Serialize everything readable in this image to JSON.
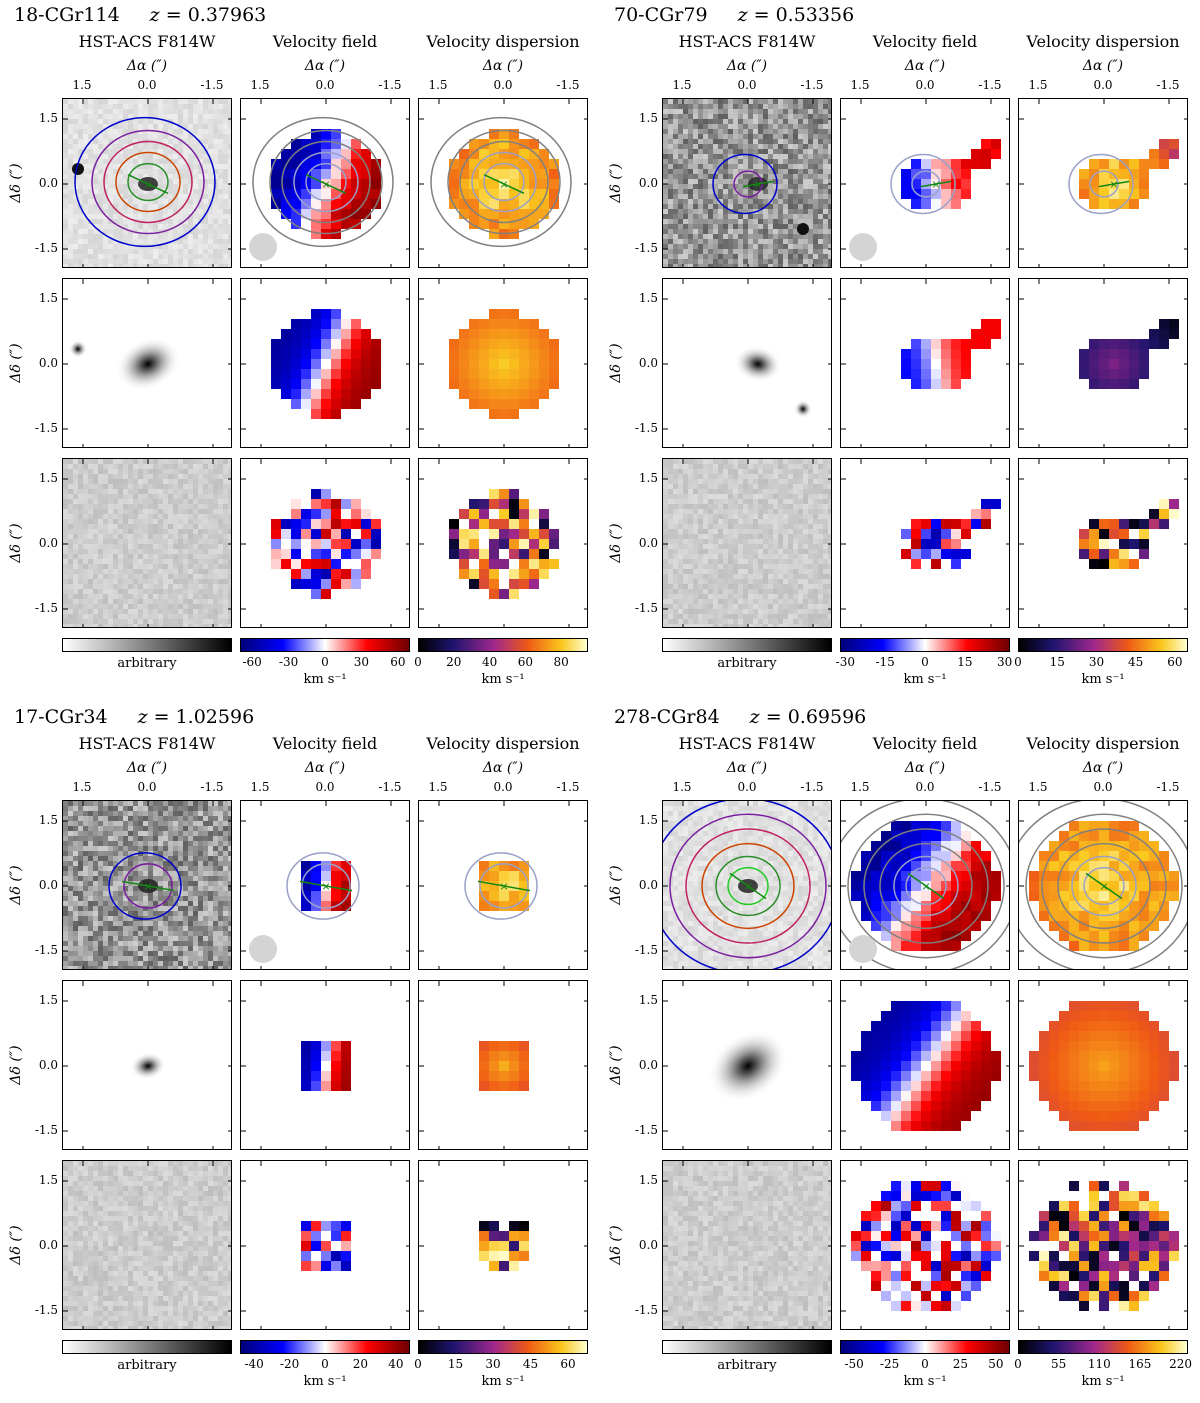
{
  "figure": {
    "axis": {
      "x_label": "Δα (″)",
      "y_label": "Δδ (″)"
    },
    "column_titles": [
      "HST-ACS F814W",
      "Velocity field",
      "Velocity dispersion"
    ],
    "galaxies": [
      {
        "name": "18-CGr114",
        "z_label": "z = ",
        "z": "0.37963",
        "x_ticks": [
          "1.5",
          "0.0",
          "-1.5"
        ],
        "y_ticks": [
          "1.5",
          "0.0",
          "-1.5"
        ],
        "colorbars": [
          {
            "label": "arbitrary",
            "ticks": []
          },
          {
            "label": "km s⁻¹",
            "ticks": [
              "-60",
              "-30",
              "0",
              "30",
              "60"
            ],
            "range": [
              -70,
              70
            ]
          },
          {
            "label": "km s⁻¹",
            "ticks": [
              "0",
              "20",
              "40",
              "60",
              "80"
            ],
            "range": [
              0,
              95
            ]
          }
        ]
      },
      {
        "name": "70-CGr79",
        "z_label": "z = ",
        "z": "0.53356",
        "x_ticks": [
          "1.5",
          "0.0",
          "-1.5"
        ],
        "y_ticks": [
          "1.5",
          "0.0",
          "-1.5"
        ],
        "colorbars": [
          {
            "label": "arbitrary",
            "ticks": []
          },
          {
            "label": "km s⁻¹",
            "ticks": [
              "-30",
              "-15",
              "0",
              "15",
              "30"
            ],
            "range": [
              -32,
              32
            ]
          },
          {
            "label": "km s⁻¹",
            "ticks": [
              "0",
              "15",
              "30",
              "45",
              "60"
            ],
            "range": [
              0,
              65
            ]
          }
        ]
      },
      {
        "name": "17-CGr34",
        "z_label": "z = ",
        "z": "1.02596",
        "x_ticks": [
          "1.5",
          "0.0",
          "-1.5"
        ],
        "y_ticks": [
          "1.5",
          "0.0",
          "-1.5"
        ],
        "colorbars": [
          {
            "label": "arbitrary",
            "ticks": []
          },
          {
            "label": "km s⁻¹",
            "ticks": [
              "-40",
              "-20",
              "0",
              "20",
              "40"
            ],
            "range": [
              -48,
              48
            ]
          },
          {
            "label": "km s⁻¹",
            "ticks": [
              "0",
              "15",
              "30",
              "45",
              "60"
            ],
            "range": [
              0,
              68
            ]
          }
        ]
      },
      {
        "name": "278-CGr84",
        "z_label": "z = ",
        "z": "0.69596",
        "x_ticks": [
          "1.5",
          "0.0",
          "-1.5"
        ],
        "y_ticks": [
          "1.5",
          "0.0",
          "-1.5"
        ],
        "colorbars": [
          {
            "label": "arbitrary",
            "ticks": []
          },
          {
            "label": "km s⁻¹",
            "ticks": [
              "-50",
              "-25",
              "0",
              "25",
              "50"
            ],
            "range": [
              -60,
              60
            ]
          },
          {
            "label": "km s⁻¹",
            "ticks": [
              "0",
              "55",
              "110",
              "165",
              "220"
            ],
            "range": [
              0,
              230
            ]
          }
        ]
      }
    ]
  }
}
